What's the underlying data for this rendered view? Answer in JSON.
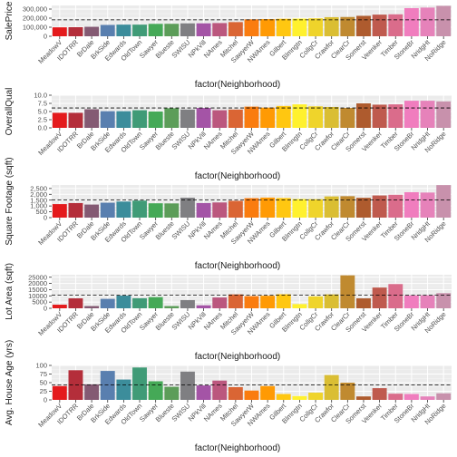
{
  "colors": {
    "panel_bg": "#ebebeb",
    "grid_major": "#ffffff",
    "grid_minor": "#f5f5f5",
    "mean_line": "#000000",
    "bar_palette": [
      "#E41A1C",
      "#B42E3A",
      "#845A73",
      "#597FAF",
      "#3C8D9B",
      "#409B77",
      "#45A957",
      "#5C9D59",
      "#7F7F82",
      "#A454A6",
      "#BB577E",
      "#DA6534",
      "#FA7C0F",
      "#FF9A04",
      "#FFC711",
      "#FFF12E",
      "#EFD42B",
      "#DABE33",
      "#C08A30",
      "#AE5B2E",
      "#BF5A4E",
      "#DA6C8B",
      "#F07DBE",
      "#E682BA",
      "#C891AC",
      "#A99FA0",
      "#999999"
    ]
  },
  "chart_data": [
    {
      "type": "bar",
      "xlabel": "factor(Neighborhood)",
      "ylabel": "SalePrice",
      "categories": [
        "MeadowV",
        "IDOTRR",
        "BrDale",
        "BrkSide",
        "Edwards",
        "OldTown",
        "Sawyer",
        "Blueste",
        "SWISU",
        "NPkVill",
        "NAmes",
        "Mitchel",
        "SawyerW",
        "NWAmes",
        "Gilbert",
        "Blmngtn",
        "CollgCr",
        "Crawfor",
        "ClearCr",
        "Somerst",
        "Veenker",
        "Timber",
        "StoneBr",
        "NridgHt",
        "NoRidge"
      ],
      "values": [
        98576,
        100124,
        104494,
        124834,
        128220,
        128225,
        136793,
        137500,
        142591,
        142694,
        145847,
        156270,
        186556,
        189050,
        192855,
        194871,
        197966,
        210625,
        212565,
        225380,
        238773,
        242247,
        310499,
        316271,
        335295
      ],
      "mean_line": 180921,
      "ylim": [
        0,
        340000
      ],
      "yticks": [
        0,
        100000,
        200000,
        300000
      ],
      "ytick_labels": [
        "0",
        "100,000",
        "200,000",
        "300,000"
      ]
    },
    {
      "type": "bar",
      "xlabel": "factor(Neighborhood)",
      "ylabel": "OverallQual",
      "categories": [
        "MeadowV",
        "IDOTRR",
        "BrDale",
        "BrkSide",
        "Edwards",
        "OldTown",
        "Sawyer",
        "Blueste",
        "SWISU",
        "NPkVill",
        "NAmes",
        "Mitchel",
        "SawyerW",
        "NWAmes",
        "Gilbert",
        "Blmngtn",
        "CollgCr",
        "Crawfor",
        "ClearCr",
        "Somerst",
        "Veenker",
        "Timber",
        "StoneBr",
        "NridgHt",
        "NoRidge"
      ],
      "values": [
        4.6,
        4.6,
        5.7,
        5.1,
        5.1,
        5.4,
        5.0,
        6.0,
        5.6,
        6.1,
        5.4,
        5.6,
        6.5,
        6.2,
        6.7,
        7.2,
        6.6,
        6.4,
        6.1,
        7.5,
        7.1,
        7.2,
        8.3,
        8.3,
        8.1
      ],
      "mean_line": 6.1,
      "ylim": [
        0,
        10
      ],
      "yticks": [
        0,
        2.5,
        5,
        7.5,
        10
      ],
      "ytick_labels": [
        "0.0",
        "2.5",
        "5.0",
        "7.5",
        "10.0"
      ]
    },
    {
      "type": "bar",
      "xlabel": "factor(Neighborhood)",
      "ylabel": "Square Footage (sqft)",
      "categories": [
        "MeadowV",
        "IDOTRR",
        "BrDale",
        "BrkSide",
        "Edwards",
        "OldTown",
        "Sawyer",
        "Blueste",
        "SWISU",
        "NPkVill",
        "NAmes",
        "Mitchel",
        "SawyerW",
        "NWAmes",
        "Gilbert",
        "Blmngtn",
        "CollgCr",
        "Crawfor",
        "ClearCr",
        "Somerst",
        "Veenker",
        "Timber",
        "StoneBr",
        "NridgHt",
        "NoRidge"
      ],
      "values": [
        1160,
        1250,
        1120,
        1280,
        1380,
        1460,
        1230,
        1220,
        1710,
        1250,
        1300,
        1440,
        1670,
        1720,
        1680,
        1590,
        1580,
        1820,
        1840,
        1700,
        1900,
        1960,
        2180,
        2150,
        2790
      ],
      "mean_line": 1515,
      "ylim": [
        0,
        2800
      ],
      "yticks": [
        0,
        500,
        1000,
        1500,
        2000,
        2500
      ],
      "ytick_labels": [
        "0",
        "500",
        "1,000",
        "1,500",
        "2,000",
        "2,500"
      ]
    },
    {
      "type": "bar",
      "xlabel": "factor(Neighborhood)",
      "ylabel": "Lot Area (sqft)",
      "categories": [
        "MeadowV",
        "IDOTRR",
        "BrDale",
        "BrkSide",
        "Edwards",
        "OldTown",
        "Sawyer",
        "Blueste",
        "SWISU",
        "NPkVill",
        "NAmes",
        "Mitchel",
        "SawyerW",
        "NWAmes",
        "Gilbert",
        "Blmngtn",
        "CollgCr",
        "Crawfor",
        "ClearCr",
        "Somerst",
        "Veenker",
        "Timber",
        "StoneBr",
        "NridgHt",
        "NoRidge"
      ],
      "values": [
        2900,
        8000,
        1800,
        7600,
        10200,
        8100,
        9000,
        1800,
        6600,
        2400,
        8700,
        11200,
        9800,
        10100,
        11300,
        3400,
        9600,
        11200,
        26500,
        8000,
        16700,
        19500,
        10400,
        10500,
        12200
      ],
      "mean_line": 10517,
      "ylim": [
        0,
        27000
      ],
      "yticks": [
        0,
        5000,
        10000,
        15000,
        20000,
        25000
      ],
      "ytick_labels": [
        "0",
        "5000",
        "10000",
        "15000",
        "20000",
        "25000"
      ]
    },
    {
      "type": "bar",
      "xlabel": "factor(Neighborhood)",
      "ylabel": "Avg. House Age (yrs)",
      "categories": [
        "MeadowV",
        "IDOTRR",
        "BrDale",
        "BrkSide",
        "Edwards",
        "OldTown",
        "Sawyer",
        "Blueste",
        "SWISU",
        "NPkVill",
        "NAmes",
        "Mitchel",
        "SawyerW",
        "NWAmes",
        "Gilbert",
        "Blmngtn",
        "CollgCr",
        "Crawfor",
        "ClearCr",
        "Somerst",
        "Veenker",
        "Timber",
        "StoneBr",
        "NridgHt",
        "NoRidge"
      ],
      "values": [
        40,
        86,
        45,
        84,
        59,
        94,
        54,
        38,
        82,
        42,
        56,
        37,
        27,
        40,
        17,
        11,
        21,
        72,
        50,
        10,
        34,
        18,
        17,
        10,
        19
      ],
      "mean_line": 43,
      "ylim": [
        0,
        100
      ],
      "yticks": [
        0,
        25,
        50,
        75,
        100
      ],
      "ytick_labels": [
        "0",
        "25",
        "50",
        "75",
        "100"
      ]
    }
  ]
}
